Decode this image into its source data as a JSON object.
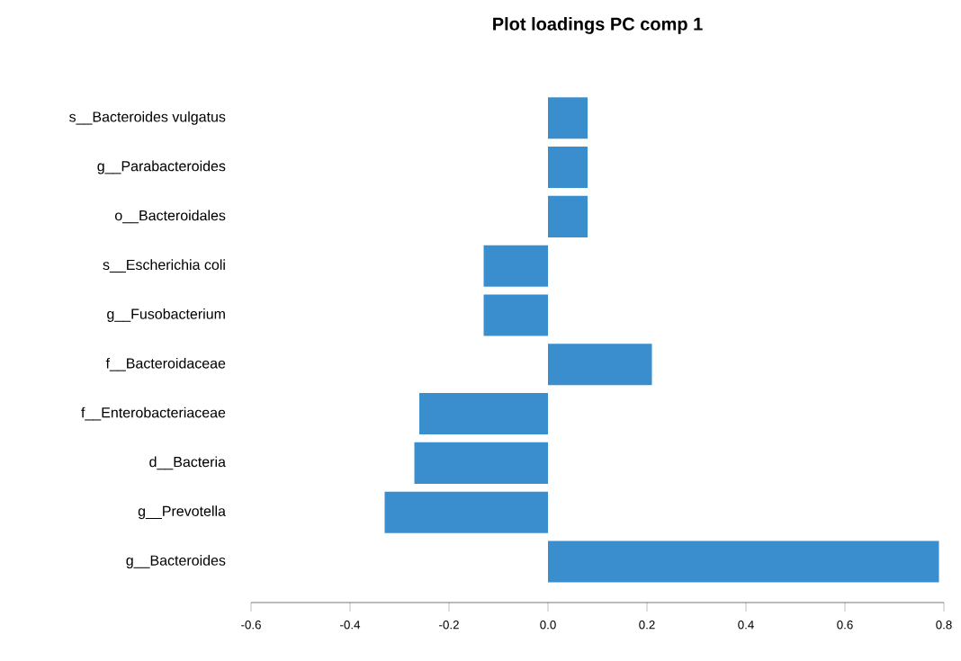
{
  "chart_data": {
    "type": "bar",
    "orientation": "horizontal",
    "title": "Plot loadings PC comp 1",
    "categories": [
      "s__Bacteroides vulgatus",
      "g__Parabacteroides",
      "o__Bacteroidales",
      "s__Escherichia coli",
      "g__Fusobacterium",
      "f__Bacteroidaceae",
      "f__Enterobacteriaceae",
      "d__Bacteria",
      "g__Prevotella",
      "g__Bacteroides"
    ],
    "values": [
      0.08,
      0.08,
      0.08,
      -0.13,
      -0.13,
      0.21,
      -0.26,
      -0.27,
      -0.33,
      0.79
    ],
    "color": "#3a8ecd",
    "xlim": [
      -0.6,
      0.8
    ],
    "xticks": [
      -0.6,
      -0.4,
      -0.2,
      {
        "value": 0,
        "label": "0.0"
      },
      0.2,
      0.4,
      0.6,
      0.8
    ]
  }
}
